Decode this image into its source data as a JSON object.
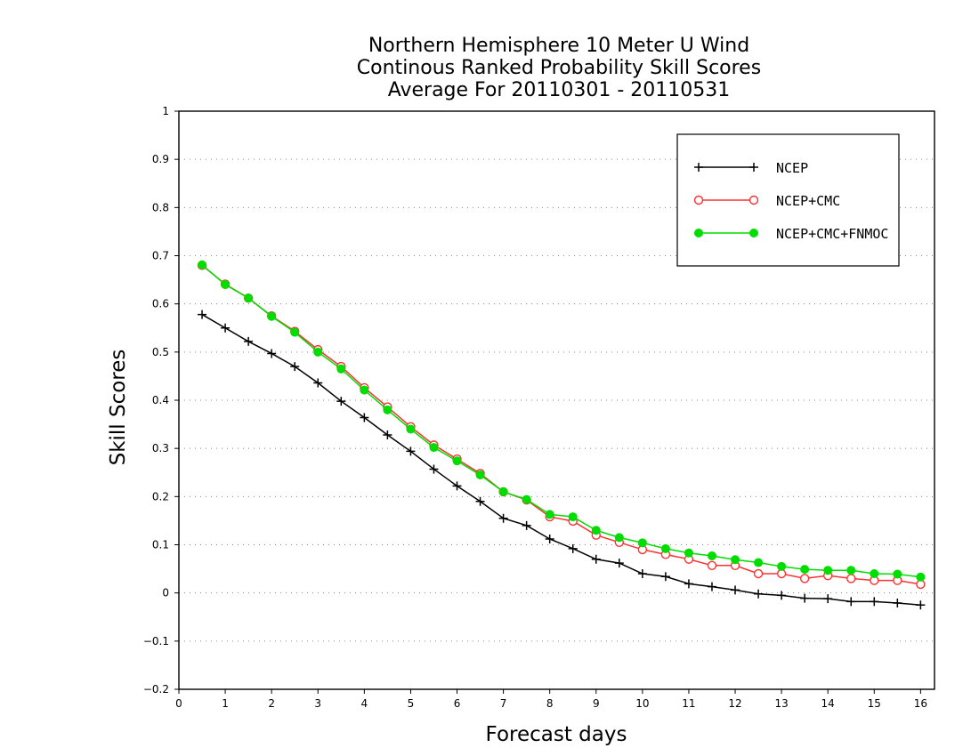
{
  "chart_data": {
    "type": "line",
    "title": [
      "Northern Hemisphere 10 Meter U Wind",
      "Continous Ranked Probability Skill Scores",
      "Average For 20110301 - 20110531"
    ],
    "xlabel": "Forecast days",
    "ylabel": "Skill Scores",
    "xlim": [
      0,
      16.3
    ],
    "ylim": [
      -0.2,
      1
    ],
    "x_ticks": [
      0,
      1,
      2,
      3,
      4,
      5,
      6,
      7,
      8,
      9,
      10,
      11,
      12,
      13,
      14,
      15,
      16
    ],
    "y_ticks": [
      -0.2,
      -0.1,
      0,
      0.1,
      0.2,
      0.3,
      0.4,
      0.5,
      0.6,
      0.7,
      0.8,
      0.9,
      1
    ],
    "grid": "horizontal dotted",
    "legend_position": "top-right",
    "x": [
      0.5,
      1,
      1.5,
      2,
      2.5,
      3,
      3.5,
      4,
      4.5,
      5,
      5.5,
      6,
      6.5,
      7,
      7.5,
      8,
      8.5,
      9,
      9.5,
      10,
      10.5,
      11,
      11.5,
      12,
      12.5,
      13,
      13.5,
      14,
      14.5,
      15,
      15.5,
      16
    ],
    "series": [
      {
        "name": "NCEP",
        "color": "#000000",
        "marker": "plus",
        "values": [
          0.578,
          0.55,
          0.522,
          0.497,
          0.47,
          0.436,
          0.398,
          0.364,
          0.328,
          0.294,
          0.257,
          0.222,
          0.19,
          0.155,
          0.14,
          0.112,
          0.092,
          0.07,
          0.062,
          0.04,
          0.034,
          0.019,
          0.013,
          0.006,
          -0.002,
          -0.005,
          -0.011,
          -0.012,
          -0.018,
          -0.018,
          -0.021,
          -0.025
        ]
      },
      {
        "name": "NCEP+CMC",
        "color": "#ff3030",
        "marker": "open-circle",
        "values": [
          0.68,
          0.641,
          0.612,
          0.575,
          0.543,
          0.505,
          0.47,
          0.426,
          0.386,
          0.345,
          0.307,
          0.278,
          0.248,
          0.21,
          0.193,
          0.158,
          0.149,
          0.12,
          0.105,
          0.09,
          0.08,
          0.07,
          0.057,
          0.057,
          0.04,
          0.04,
          0.03,
          0.036,
          0.03,
          0.026,
          0.026,
          0.018
        ]
      },
      {
        "name": "NCEP+CMC+FNMOC",
        "color": "#00dd00",
        "marker": "filled-circle",
        "values": [
          0.681,
          0.64,
          0.612,
          0.574,
          0.541,
          0.5,
          0.465,
          0.421,
          0.38,
          0.34,
          0.302,
          0.274,
          0.245,
          0.21,
          0.194,
          0.163,
          0.158,
          0.13,
          0.115,
          0.104,
          0.092,
          0.083,
          0.077,
          0.069,
          0.063,
          0.055,
          0.049,
          0.047,
          0.047,
          0.04,
          0.039,
          0.033
        ]
      }
    ]
  }
}
